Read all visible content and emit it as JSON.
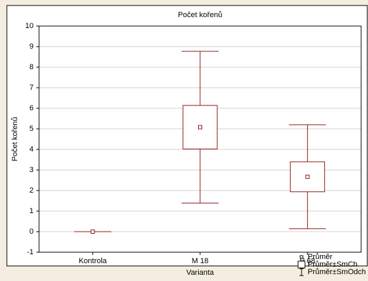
{
  "chart_data": {
    "type": "box",
    "title": "Počet kořenů",
    "x_label": "Varianta",
    "y_label": "Počet kořenů",
    "categories": [
      "Kontrola",
      "M 18",
      "P 68"
    ],
    "series": [
      {
        "name": "Průměr",
        "values": [
          0,
          5.08,
          2.67
        ]
      },
      {
        "name": "Průměr±SmCh",
        "values": [
          0,
          1.06,
          0.73
        ]
      },
      {
        "name": "Průměr±SmOdch",
        "values": [
          0,
          3.69,
          2.53
        ]
      }
    ],
    "color": "#8b1a1a",
    "ylim": [
      -1,
      10
    ],
    "yticks": [
      -1,
      0,
      1,
      2,
      3,
      4,
      5,
      6,
      7,
      8,
      9,
      10
    ],
    "grid": true
  }
}
